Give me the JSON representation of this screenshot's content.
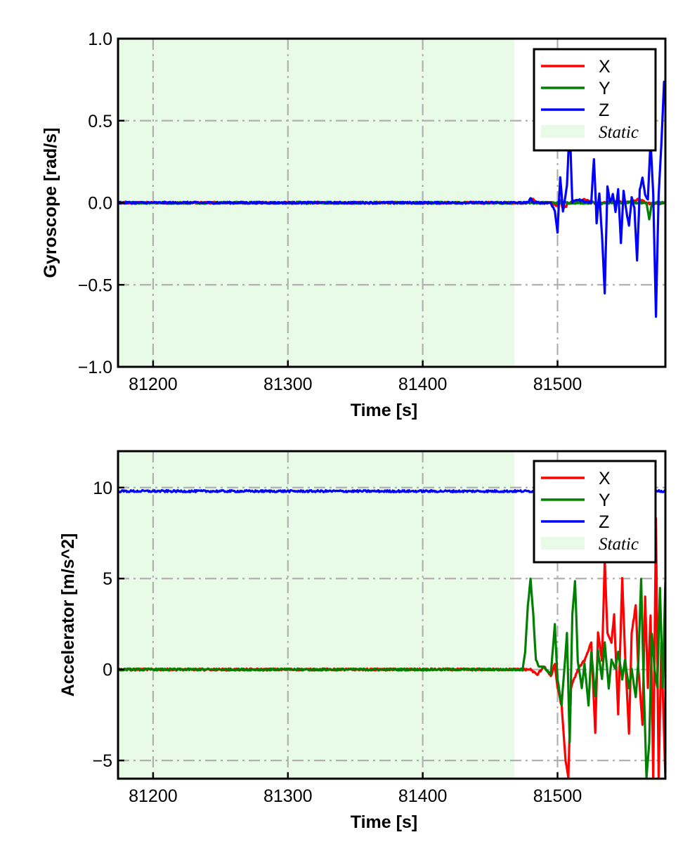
{
  "chart_data": [
    {
      "id": "gyro",
      "type": "line",
      "title": "",
      "xlabel": "Time [s]",
      "ylabel": "Gyroscope [rad/s]",
      "xlim": [
        81174,
        81580
      ],
      "ylim": [
        -1.0,
        1.0
      ],
      "xticks": [
        81200,
        81300,
        81400,
        81500
      ],
      "xtick_labels": [
        "81200",
        "81300",
        "81400",
        "81500"
      ],
      "yticks": [
        -1.0,
        -0.5,
        0.0,
        0.5,
        1.0
      ],
      "ytick_labels": [
        "−1.0",
        "−0.5",
        "0.0",
        "0.5",
        "1.0"
      ],
      "grid": true,
      "legend_position": "top-right",
      "static_region": {
        "label": "Static",
        "x_start": 81174,
        "x_end": 81468,
        "color": "#e8fbe6"
      },
      "series": [
        {
          "name": "X",
          "color": "#ff0000",
          "x": [
            81174,
            81480,
            81482,
            81485,
            81495,
            81500,
            81502,
            81504,
            81510,
            81515,
            81520,
            81530,
            81540,
            81550,
            81560,
            81570,
            81580
          ],
          "y": [
            0.0,
            0.0,
            0.02,
            0.0,
            0.0,
            -0.02,
            0.02,
            -0.04,
            0.01,
            0.0,
            0.02,
            -0.01,
            0.01,
            0.0,
            0.02,
            -0.01,
            0.0
          ]
        },
        {
          "name": "Y",
          "color": "#008000",
          "x": [
            81174,
            81480,
            81500,
            81520,
            81540,
            81560,
            81566,
            81568,
            81570,
            81580
          ],
          "y": [
            0.0,
            0.0,
            0.0,
            0.0,
            0.0,
            0.0,
            0.0,
            -0.1,
            0.0,
            0.0
          ]
        },
        {
          "name": "Z",
          "color": "#0000ff",
          "x": [
            81174,
            81478,
            81480,
            81482,
            81485,
            81495,
            81498,
            81500,
            81502,
            81504,
            81507,
            81509,
            81511,
            81514,
            81525,
            81527,
            81529,
            81531,
            81533,
            81535,
            81537,
            81539,
            81541,
            81543,
            81545,
            81547,
            81549,
            81551,
            81553,
            81555,
            81557,
            81559,
            81561,
            81563,
            81565,
            81567,
            81569,
            81571,
            81573,
            81575,
            81577,
            81579,
            81580
          ],
          "y": [
            0.0,
            0.0,
            0.03,
            0.0,
            0.0,
            0.0,
            -0.05,
            -0.18,
            0.16,
            -0.05,
            0.1,
            0.48,
            0.0,
            0.02,
            0.0,
            0.27,
            -0.12,
            0.06,
            -0.2,
            -0.55,
            0.1,
            0.0,
            0.05,
            -0.05,
            0.08,
            -0.25,
            0.07,
            -0.05,
            -0.14,
            0.03,
            -0.03,
            -0.35,
            0.08,
            0.15,
            0.05,
            0.02,
            0.38,
            0.05,
            -0.69,
            0.05,
            0.35,
            0.74,
            0.72
          ]
        }
      ]
    },
    {
      "id": "accel",
      "type": "line",
      "title": "",
      "xlabel": "Time [s]",
      "ylabel": "Accelerator [m/s^2]",
      "xlim": [
        81174,
        81580
      ],
      "ylim": [
        -6.0,
        12.0
      ],
      "xticks": [
        81200,
        81300,
        81400,
        81500
      ],
      "xtick_labels": [
        "81200",
        "81300",
        "81400",
        "81500"
      ],
      "yticks": [
        -5,
        0,
        5,
        10
      ],
      "ytick_labels": [
        "−5",
        "0",
        "5",
        "10"
      ],
      "grid": true,
      "legend_position": "top-right",
      "static_region": {
        "label": "Static",
        "x_start": 81174,
        "x_end": 81468,
        "color": "#e8fbe6"
      },
      "series": [
        {
          "name": "X",
          "color": "#ff0000",
          "x": [
            81174,
            81480,
            81485,
            81490,
            81495,
            81498,
            81500,
            81503,
            81506,
            81508,
            81510,
            81515,
            81520,
            81525,
            81528,
            81530,
            81533,
            81535,
            81537,
            81540,
            81542,
            81545,
            81548,
            81550,
            81553,
            81555,
            81558,
            81560,
            81563,
            81565,
            81567,
            81569,
            81571,
            81573,
            81575,
            81577,
            81580
          ],
          "y": [
            0.0,
            0.0,
            -0.3,
            0.2,
            -0.4,
            0.3,
            -1.0,
            -2.0,
            -5.0,
            -6.0,
            -1.0,
            0.0,
            0.5,
            1.5,
            -3.5,
            2.0,
            0.5,
            6.0,
            2.0,
            1.5,
            3.0,
            -2.5,
            5.0,
            1.0,
            -3.5,
            2.0,
            3.5,
            0.0,
            -3.0,
            4.0,
            -1.0,
            3.0,
            -6.0,
            8.3,
            -6.0,
            1.5,
            -6.0
          ]
        },
        {
          "name": "Y",
          "color": "#008000",
          "x": [
            81174,
            81474,
            81476,
            81478,
            81480,
            81482,
            81484,
            81486,
            81490,
            81495,
            81498,
            81500,
            81503,
            81505,
            81507,
            81509,
            81511,
            81513,
            81515,
            81518,
            81520,
            81523,
            81525,
            81528,
            81530,
            81533,
            81535,
            81538,
            81540,
            81543,
            81545,
            81548,
            81550,
            81553,
            81555,
            81558,
            81560,
            81562,
            81564,
            81566,
            81568,
            81570,
            81572,
            81574,
            81576,
            81578,
            81580
          ],
          "y": [
            0.0,
            0.0,
            1.0,
            3.5,
            5.0,
            3.0,
            0.5,
            0.2,
            0.1,
            -0.3,
            2.5,
            -0.5,
            -2.0,
            0.0,
            2.0,
            -4.0,
            3.0,
            4.9,
            0.5,
            -1.0,
            0.3,
            -2.0,
            1.0,
            -1.5,
            1.0,
            -0.5,
            1.5,
            -1.0,
            0.5,
            0.0,
            1.0,
            -0.5,
            0.5,
            -1.0,
            0.0,
            -1.5,
            0.5,
            5.0,
            -1.0,
            -6.0,
            -4.0,
            2.0,
            0.0,
            -1.0,
            4.5,
            -1.0,
            4.9
          ]
        },
        {
          "name": "Z",
          "color": "#0000ff",
          "x": [
            81174,
            81580
          ],
          "y": [
            9.8,
            9.8
          ]
        }
      ]
    }
  ]
}
